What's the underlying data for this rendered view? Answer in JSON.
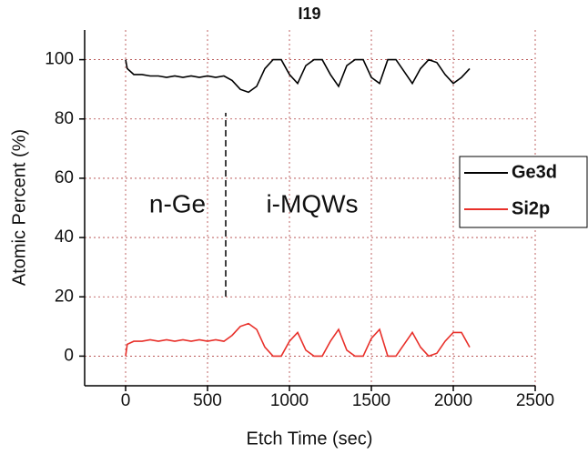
{
  "chart_data": {
    "type": "line",
    "title": "I19",
    "x_label": "Etch Time (sec)",
    "y_label": "Atomic Percent (%)",
    "annotations": [
      "n-Ge",
      "i-MQWs"
    ],
    "x": [
      0,
      10,
      50,
      100,
      150,
      200,
      250,
      300,
      350,
      400,
      450,
      500,
      550,
      600,
      650,
      700,
      750,
      800,
      850,
      900,
      950,
      1000,
      1050,
      1100,
      1150,
      1200,
      1250,
      1300,
      1350,
      1400,
      1450,
      1500,
      1550,
      1600,
      1650,
      1700,
      1750,
      1800,
      1850,
      1900,
      1950,
      2000,
      2050,
      2100
    ],
    "series": [
      {
        "name": "Ge3d",
        "color": "#000000",
        "values": [
          100,
          97,
          95,
          95,
          94.5,
          94.5,
          94,
          94.5,
          94,
          94.5,
          94,
          94.5,
          94,
          94.5,
          93,
          90,
          89,
          91,
          97,
          100,
          100,
          95,
          92,
          98,
          100,
          100,
          95,
          91,
          98,
          100,
          100,
          94,
          92,
          100,
          100,
          96,
          92,
          97,
          100,
          99,
          95,
          92,
          94,
          97
        ]
      },
      {
        "name": "Si2p",
        "color": "#e8302a",
        "values": [
          0,
          4,
          5,
          5,
          5.5,
          5,
          5.5,
          5,
          5.5,
          5,
          5.5,
          5,
          5.5,
          5,
          7,
          10,
          11,
          9,
          3,
          0,
          0,
          5,
          8,
          2,
          0,
          0,
          5,
          9,
          2,
          0,
          0,
          6,
          9,
          0,
          0,
          4,
          8,
          3,
          0,
          1,
          5,
          8,
          8,
          3
        ]
      }
    ],
    "xlim": [
      -250,
      2500
    ],
    "xticks": [
      0,
      500,
      1000,
      1500,
      2000,
      2500
    ],
    "ylim": [
      -10,
      110
    ],
    "yticks": [
      0,
      20,
      40,
      60,
      80,
      100
    ],
    "grid": true
  }
}
